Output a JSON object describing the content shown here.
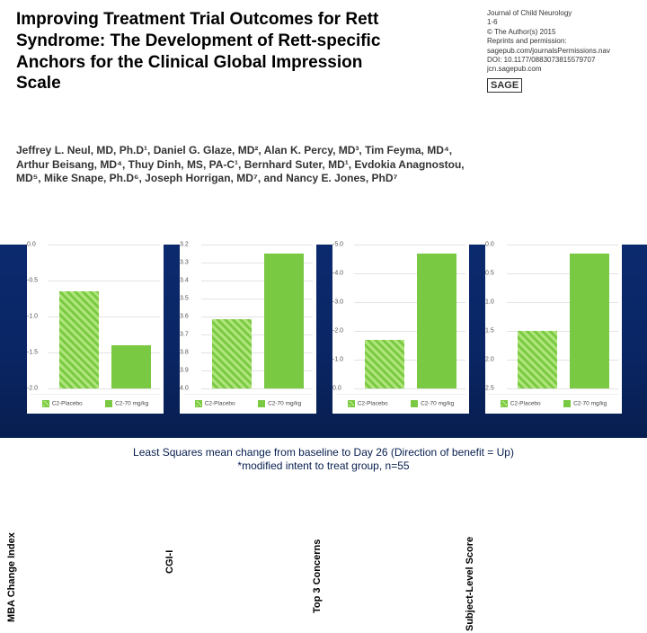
{
  "header": {
    "title": "Improving Treatment Trial Outcomes for Rett Syndrome: The Development of Rett-specific Anchors for the Clinical Global Impression Scale",
    "journal": {
      "name": "Journal of Child Neurology",
      "pages": "1-6",
      "copyright": "© The Author(s) 2015",
      "reprints": "Reprints and permission:",
      "permsite": "sagepub.com/journalsPermissions.nav",
      "doi": "DOI: 10.1177/0883073815579707",
      "site": "jcn.sagepub.com",
      "publisher": "SAGE"
    },
    "authors": "Jeffrey L. Neul, MD, Ph.D¹, Daniel G. Glaze, MD², Alan K. Percy, MD³, Tim Feyma, MD⁴, Arthur Beisang, MD⁴, Thuy Dinh, MS, PA-C¹, Bernhard Suter, MD¹, Evdokia Anagnostou, MD⁵, Mike Snape, Ph.D⁶, Joseph Horrigan, MD⁷, and Nancy E. Jones, PhD⁷"
  },
  "panels": [
    {
      "ylabel": "MBA Change Index",
      "ticks": [
        "0.0",
        "-0.5",
        "-1.0",
        "-1.5",
        "-2.0"
      ],
      "range": 2.0,
      "bars": [
        {
          "value": -1.35,
          "style": "hatch"
        },
        {
          "value": -0.6,
          "style": "solid"
        }
      ]
    },
    {
      "ylabel": "CGI-I",
      "ticks": [
        "3.2",
        "3.3",
        "3.4",
        "3.5",
        "3.6",
        "3.7",
        "3.8",
        "3.9",
        "4.0"
      ],
      "range": 0.8,
      "bars": [
        {
          "value": 0.38,
          "height_frac": 0.48,
          "style": "hatch"
        },
        {
          "value": 0.75,
          "height_frac": 0.94,
          "style": "solid"
        }
      ]
    },
    {
      "ylabel": "Top 3 Concerns",
      "ticks": [
        "-5.0",
        "-4.0",
        "-3.0",
        "-2.0",
        "-1.0",
        "0.0"
      ],
      "range": 5.0,
      "bars": [
        {
          "value": -1.7,
          "style": "hatch"
        },
        {
          "value": -4.7,
          "style": "solid"
        }
      ]
    },
    {
      "ylabel": "Subject-Level Score",
      "ticks": [
        "0.0",
        "0.5",
        "1.0",
        "1.5",
        "2.0",
        "2.5"
      ],
      "range": 2.5,
      "bars": [
        {
          "value": 1.0,
          "style": "hatch"
        },
        {
          "value": 2.35,
          "style": "solid"
        }
      ]
    }
  ],
  "legend": {
    "placebo": "C2-Placebo",
    "drug": "C2-70 mg/kg"
  },
  "footer": {
    "line1": "Least Squares mean change from baseline to Day 26 (Direction of benefit = Up)",
    "line2": "*modified intent to treat group, n=55"
  },
  "colors": {
    "bar": "#7ac942",
    "band_bg": "#0a2563",
    "text_footer": "#071e4f"
  }
}
